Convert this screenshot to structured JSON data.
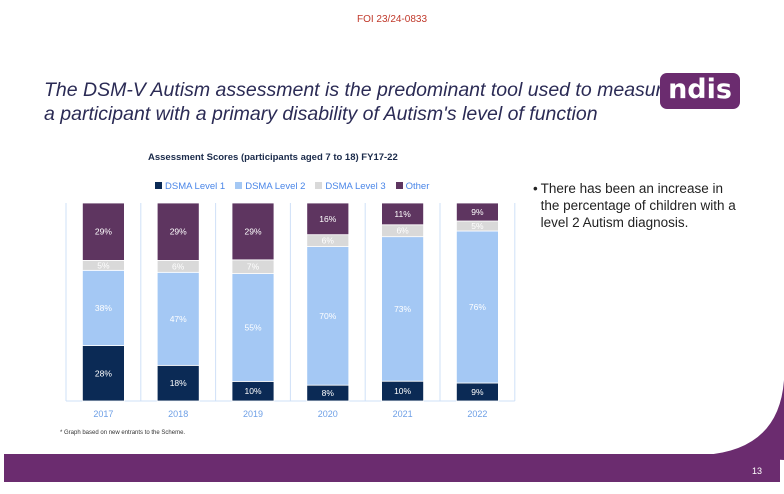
{
  "header": {
    "foi": "FOI 23/24-0833",
    "title_line1": "The DSM-V Autism assessment is the predominant tool used to measure",
    "title_line2": "a participant with a primary disability of Autism's level of function",
    "logo": "ndis"
  },
  "bullet": "There has been an increase in the percentage of children with a level 2 Autism diagnosis.",
  "footnote": "* Graph based on new entrants to the Scheme.",
  "page_number": "13",
  "colors": {
    "level1": "#0b2a55",
    "level2": "#a4c8f4",
    "level3": "#d9d9d9",
    "other": "#5e3560",
    "brand": "#6b2c6f"
  },
  "chart_data": {
    "type": "bar",
    "stacked": true,
    "title": "Assessment Scores (participants aged 7 to 18)  FY17-22",
    "categories": [
      "2017",
      "2018",
      "2019",
      "2020",
      "2021",
      "2022"
    ],
    "legend_position": "top",
    "series": [
      {
        "name": "DSMA Level 1",
        "values": [
          28,
          18,
          10,
          8,
          10,
          9
        ]
      },
      {
        "name": "DSMA Level 2",
        "values": [
          38,
          47,
          55,
          70,
          73,
          76
        ]
      },
      {
        "name": "DSMA Level 3",
        "values": [
          5,
          6,
          7,
          6,
          6,
          5
        ]
      },
      {
        "name": "Other",
        "values": [
          29,
          29,
          29,
          16,
          11,
          9
        ]
      }
    ],
    "unit": "%"
  }
}
